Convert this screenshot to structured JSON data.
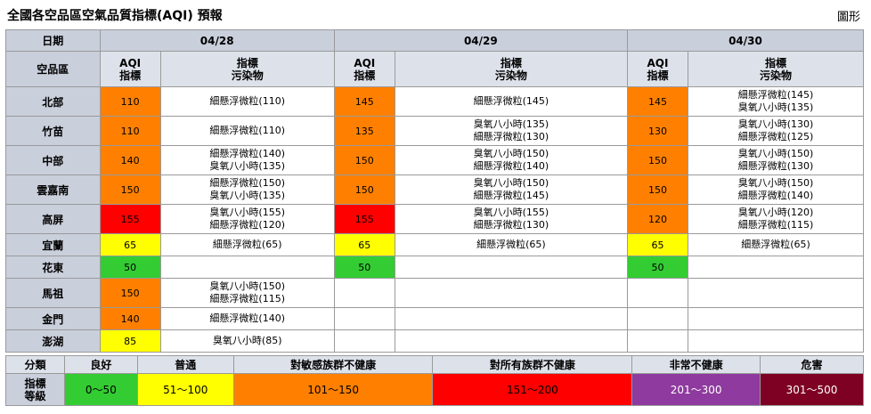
{
  "title": "全國各空品區空氣品質指標(AQI) 預報",
  "view_link": "圖形",
  "header": {
    "date_label": "日期",
    "region_label": "空品區",
    "aqi_label_1": "AQI",
    "aqi_label_2": "指標",
    "pol_label_1": "指標",
    "pol_label_2": "污染物",
    "dates": [
      "04/28",
      "04/29",
      "04/30"
    ]
  },
  "colors": {
    "green": "#33cc33",
    "yellow": "#ffff00",
    "orange": "#ff8000",
    "red": "#ff0000",
    "purple": "#8e3a9e",
    "maroon": "#7e0023"
  },
  "rows": [
    {
      "region": "北部",
      "days": [
        {
          "aqi": "110",
          "color": "orange",
          "pollutants": [
            "細懸浮微粒(110)"
          ]
        },
        {
          "aqi": "145",
          "color": "orange",
          "pollutants": [
            "細懸浮微粒(145)"
          ]
        },
        {
          "aqi": "145",
          "color": "orange",
          "pollutants": [
            "細懸浮微粒(145)",
            "臭氧八小時(135)"
          ]
        }
      ]
    },
    {
      "region": "竹苗",
      "days": [
        {
          "aqi": "110",
          "color": "orange",
          "pollutants": [
            "細懸浮微粒(110)"
          ]
        },
        {
          "aqi": "135",
          "color": "orange",
          "pollutants": [
            "臭氧八小時(135)",
            "細懸浮微粒(130)"
          ]
        },
        {
          "aqi": "130",
          "color": "orange",
          "pollutants": [
            "臭氧八小時(130)",
            "細懸浮微粒(125)"
          ]
        }
      ]
    },
    {
      "region": "中部",
      "days": [
        {
          "aqi": "140",
          "color": "orange",
          "pollutants": [
            "細懸浮微粒(140)",
            "臭氧八小時(135)"
          ]
        },
        {
          "aqi": "150",
          "color": "orange",
          "pollutants": [
            "臭氧八小時(150)",
            "細懸浮微粒(140)"
          ]
        },
        {
          "aqi": "150",
          "color": "orange",
          "pollutants": [
            "臭氧八小時(150)",
            "細懸浮微粒(130)"
          ]
        }
      ]
    },
    {
      "region": "雲嘉南",
      "days": [
        {
          "aqi": "150",
          "color": "orange",
          "pollutants": [
            "細懸浮微粒(150)",
            "臭氧八小時(135)"
          ]
        },
        {
          "aqi": "150",
          "color": "orange",
          "pollutants": [
            "臭氧八小時(150)",
            "細懸浮微粒(145)"
          ]
        },
        {
          "aqi": "150",
          "color": "orange",
          "pollutants": [
            "臭氧八小時(150)",
            "細懸浮微粒(140)"
          ]
        }
      ]
    },
    {
      "region": "高屏",
      "days": [
        {
          "aqi": "155",
          "color": "red",
          "pollutants": [
            "臭氧八小時(155)",
            "細懸浮微粒(120)"
          ]
        },
        {
          "aqi": "155",
          "color": "red",
          "pollutants": [
            "臭氧八小時(155)",
            "細懸浮微粒(130)"
          ]
        },
        {
          "aqi": "120",
          "color": "orange",
          "pollutants": [
            "臭氧八小時(120)",
            "細懸浮微粒(115)"
          ]
        }
      ]
    },
    {
      "region": "宜蘭",
      "days": [
        {
          "aqi": "65",
          "color": "yellow",
          "pollutants": [
            "細懸浮微粒(65)"
          ]
        },
        {
          "aqi": "65",
          "color": "yellow",
          "pollutants": [
            "細懸浮微粒(65)"
          ]
        },
        {
          "aqi": "65",
          "color": "yellow",
          "pollutants": [
            "細懸浮微粒(65)"
          ]
        }
      ]
    },
    {
      "region": "花東",
      "days": [
        {
          "aqi": "50",
          "color": "green",
          "pollutants": []
        },
        {
          "aqi": "50",
          "color": "green",
          "pollutants": []
        },
        {
          "aqi": "50",
          "color": "green",
          "pollutants": []
        }
      ]
    },
    {
      "region": "馬祖",
      "days": [
        {
          "aqi": "150",
          "color": "orange",
          "pollutants": [
            "臭氧八小時(150)",
            "細懸浮微粒(115)"
          ]
        },
        {
          "aqi": "",
          "color": "blank",
          "pollutants": []
        },
        {
          "aqi": "",
          "color": "blank",
          "pollutants": []
        }
      ]
    },
    {
      "region": "金門",
      "days": [
        {
          "aqi": "140",
          "color": "orange",
          "pollutants": [
            "細懸浮微粒(140)"
          ]
        },
        {
          "aqi": "",
          "color": "blank",
          "pollutants": []
        },
        {
          "aqi": "",
          "color": "blank",
          "pollutants": []
        }
      ]
    },
    {
      "region": "澎湖",
      "days": [
        {
          "aqi": "85",
          "color": "yellow",
          "pollutants": [
            "臭氧八小時(85)"
          ]
        },
        {
          "aqi": "",
          "color": "blank",
          "pollutants": []
        },
        {
          "aqi": "",
          "color": "blank",
          "pollutants": []
        }
      ]
    }
  ],
  "legend": {
    "cat_label": "分類",
    "idx_label_1": "指標",
    "idx_label_2": "等級",
    "items": [
      {
        "label": "良好",
        "range": "0～50",
        "color": "green"
      },
      {
        "label": "普通",
        "range": "51～100",
        "color": "yellow"
      },
      {
        "label": "對敏感族群不健康",
        "range": "101～150",
        "color": "orange"
      },
      {
        "label": "對所有族群不健康",
        "range": "151～200",
        "color": "red"
      },
      {
        "label": "非常不健康",
        "range": "201～300",
        "color": "purple"
      },
      {
        "label": "危害",
        "range": "301～500",
        "color": "maroon"
      }
    ]
  }
}
